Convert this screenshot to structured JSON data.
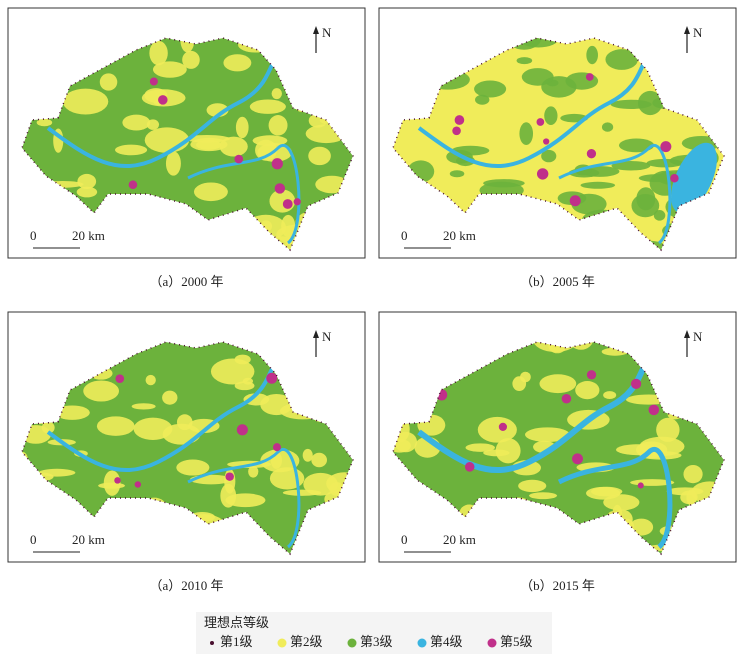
{
  "panels": [
    {
      "caption": "（a）2000 年",
      "north": "N",
      "scale": {
        "zero": "0",
        "distance": "20 km"
      }
    },
    {
      "caption": "（b）2005 年",
      "north": "N",
      "scale": {
        "zero": "0",
        "distance": "20 km"
      }
    },
    {
      "caption": "（a）2010 年",
      "north": "N",
      "scale": {
        "zero": "0",
        "distance": "20 km"
      }
    },
    {
      "caption": "（b）2015 年",
      "north": "N",
      "scale": {
        "zero": "0",
        "distance": "20 km"
      }
    }
  ],
  "legend": {
    "title": "理想点等级",
    "items": [
      {
        "label": "第1级",
        "color": "#4a1030"
      },
      {
        "label": "第2级",
        "color": "#f0ec5a"
      },
      {
        "label": "第3级",
        "color": "#6cb23c"
      },
      {
        "label": "第4级",
        "color": "#3ab4e0"
      },
      {
        "label": "第5级",
        "color": "#c0308a"
      }
    ]
  }
}
